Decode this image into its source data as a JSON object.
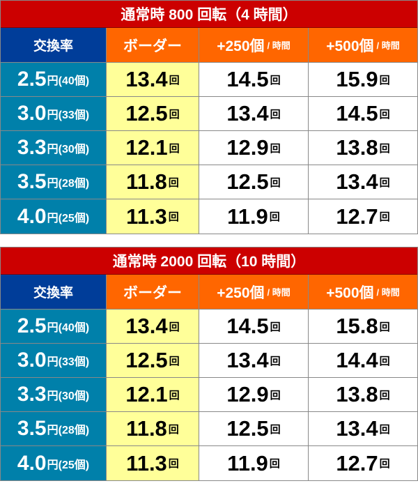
{
  "colors": {
    "title": "#cc0000",
    "rate_header": "#003d99",
    "other_header": "#ff6600",
    "rate_cell": "#0080aa",
    "border_cell": "#ffff99"
  },
  "headers": {
    "rate": "交換率",
    "border": "ボーダー",
    "plus250": "+250個",
    "plus500": "+500個",
    "per_hour": "/ 時間"
  },
  "unit": "回",
  "yen": "円",
  "tables": [
    {
      "title": "通常時 800 回転（4 時間）",
      "rows": [
        {
          "rate": "2.5",
          "balls": "(40個)",
          "border": "13.4",
          "p250": "14.5",
          "p500": "15.9"
        },
        {
          "rate": "3.0",
          "balls": "(33個)",
          "border": "12.5",
          "p250": "13.4",
          "p500": "14.5"
        },
        {
          "rate": "3.3",
          "balls": "(30個)",
          "border": "12.1",
          "p250": "12.9",
          "p500": "13.8"
        },
        {
          "rate": "3.5",
          "balls": "(28個)",
          "border": "11.8",
          "p250": "12.5",
          "p500": "13.4"
        },
        {
          "rate": "4.0",
          "balls": "(25個)",
          "border": "11.3",
          "p250": "11.9",
          "p500": "12.7"
        }
      ]
    },
    {
      "title": "通常時 2000 回転（10 時間）",
      "rows": [
        {
          "rate": "2.5",
          "balls": "(40個)",
          "border": "13.4",
          "p250": "14.5",
          "p500": "15.8"
        },
        {
          "rate": "3.0",
          "balls": "(33個)",
          "border": "12.5",
          "p250": "13.4",
          "p500": "14.4"
        },
        {
          "rate": "3.3",
          "balls": "(30個)",
          "border": "12.1",
          "p250": "12.9",
          "p500": "13.8"
        },
        {
          "rate": "3.5",
          "balls": "(28個)",
          "border": "11.8",
          "p250": "12.5",
          "p500": "13.4"
        },
        {
          "rate": "4.0",
          "balls": "(25個)",
          "border": "11.3",
          "p250": "11.9",
          "p500": "12.7"
        }
      ]
    }
  ]
}
